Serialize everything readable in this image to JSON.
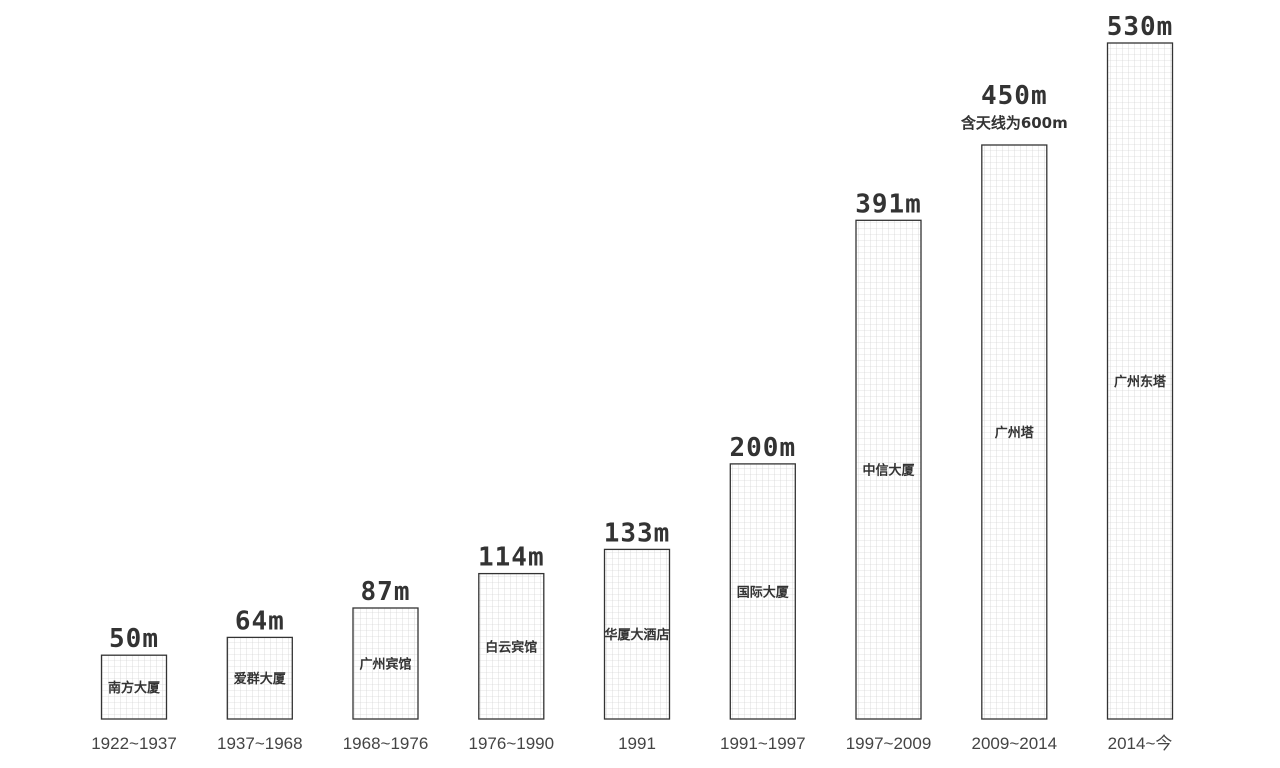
{
  "chart_data": {
    "type": "bar",
    "categories": [
      "1922~1937",
      "1937~1968",
      "1968~1976",
      "1976~1990",
      "1991",
      "1991~1997",
      "1997~2009",
      "2009~2014",
      "2014~今"
    ],
    "values": [
      50,
      64,
      87,
      114,
      133,
      200,
      391,
      450,
      530
    ],
    "value_labels": [
      "50m",
      "64m",
      "87m",
      "114m",
      "133m",
      "200m",
      "391m",
      "450m",
      "530m"
    ],
    "building_names": [
      "南方大厦",
      "爱群大厦",
      "广州宾馆",
      "白云宾馆",
      "华厦大酒店",
      "国际大厦",
      "中信大厦",
      "广州塔",
      "广州东塔"
    ],
    "annotations": [
      {
        "category": "2009~2014",
        "text": "含天线为600m"
      }
    ],
    "title": "",
    "xlabel": "",
    "ylabel": "",
    "ylim": [
      0,
      530
    ],
    "grid": false,
    "bar_fill": "grid-pattern",
    "colors": {
      "bar_outline": "#333333",
      "bar_grid": "#cccccc",
      "text": "#333333",
      "period_text": "#444444",
      "background": "#ffffff"
    }
  }
}
